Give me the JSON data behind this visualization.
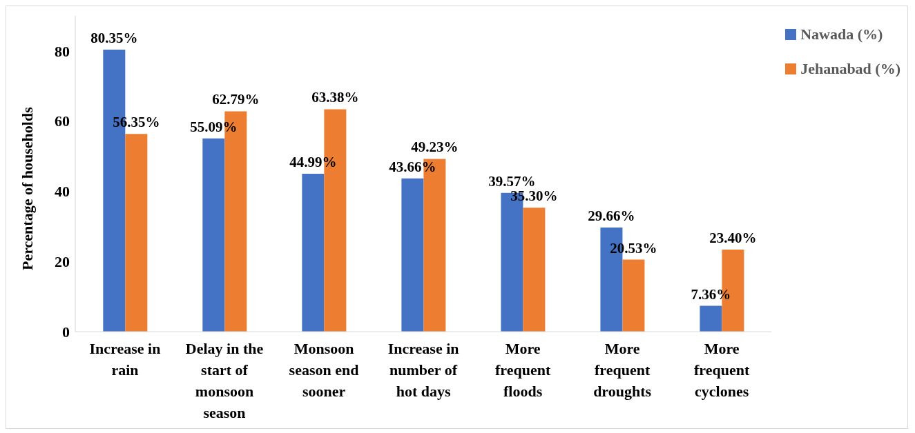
{
  "chart_data": {
    "type": "bar",
    "ylabel": "Percentage of households",
    "categories": [
      "Increase in rain",
      "Delay in the start of monsoon season",
      "Monsoon season end sooner",
      "Increase in number of hot days",
      "More frequent floods",
      "More frequent droughts",
      "More frequent cyclones"
    ],
    "series": [
      {
        "name": "Nawada (%)",
        "color": "#4472c4",
        "values": [
          80.35,
          55.09,
          44.99,
          43.66,
          39.57,
          29.66,
          7.36
        ],
        "value_labels": [
          "80.35%",
          "55.09%",
          "44.99%",
          "43.66%",
          "39.57%",
          "29.66%",
          "7.36%"
        ]
      },
      {
        "name": "Jehanabad (%)",
        "color": "#ed7d31",
        "values": [
          56.35,
          62.79,
          63.38,
          49.23,
          35.3,
          20.53,
          23.4
        ],
        "value_labels": [
          "56.35%",
          "62.79%",
          "63.38%",
          "49.23%",
          "35.30%",
          "20.53%",
          "23.40%"
        ]
      }
    ],
    "ylim": [
      0,
      90
    ],
    "yticks": [
      0,
      20,
      40,
      60,
      80
    ],
    "grid": false,
    "legend": "top right"
  }
}
